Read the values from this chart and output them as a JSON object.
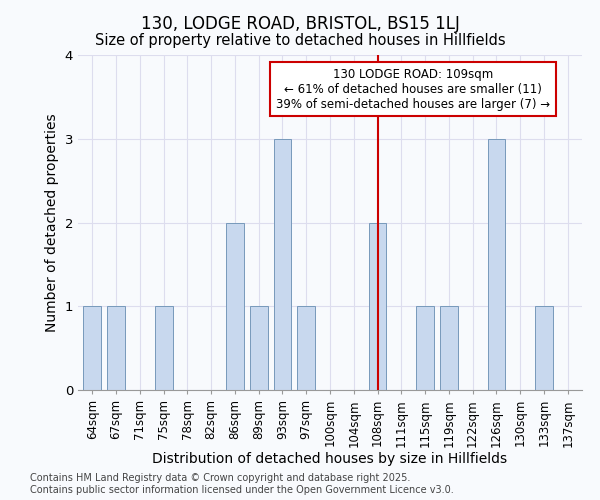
{
  "title": "130, LODGE ROAD, BRISTOL, BS15 1LJ",
  "subtitle": "Size of property relative to detached houses in Hillfields",
  "xlabel": "Distribution of detached houses by size in Hillfields",
  "ylabel": "Number of detached properties",
  "categories": [
    "64sqm",
    "67sqm",
    "71sqm",
    "75sqm",
    "78sqm",
    "82sqm",
    "86sqm",
    "89sqm",
    "93sqm",
    "97sqm",
    "100sqm",
    "104sqm",
    "108sqm",
    "111sqm",
    "115sqm",
    "119sqm",
    "122sqm",
    "126sqm",
    "130sqm",
    "133sqm",
    "137sqm"
  ],
  "values": [
    1,
    1,
    0,
    1,
    0,
    0,
    2,
    1,
    3,
    1,
    0,
    0,
    2,
    0,
    1,
    1,
    0,
    3,
    0,
    1,
    0
  ],
  "bar_color": "#c8d8ee",
  "bar_edge_color": "#7799bb",
  "vline_x": 12,
  "annotation_line1": "130 LODGE ROAD: 109sqm",
  "annotation_line2": "← 61% of detached houses are smaller (11)",
  "annotation_line3": "39% of semi-detached houses are larger (7) →",
  "annotation_box_color": "#ffffff",
  "annotation_box_edge": "#cc0000",
  "vline_color": "#cc0000",
  "ylim": [
    0,
    4
  ],
  "yticks": [
    0,
    1,
    2,
    3,
    4
  ],
  "footer": "Contains HM Land Registry data © Crown copyright and database right 2025.\nContains public sector information licensed under the Open Government Licence v3.0.",
  "bg_color": "#f8fafd",
  "plot_bg_color": "#f8fafd",
  "grid_color": "#ddddee",
  "title_fontsize": 12,
  "subtitle_fontsize": 10.5,
  "axis_label_fontsize": 10,
  "tick_fontsize": 8.5,
  "footer_fontsize": 7,
  "annotation_fontsize": 8.5
}
